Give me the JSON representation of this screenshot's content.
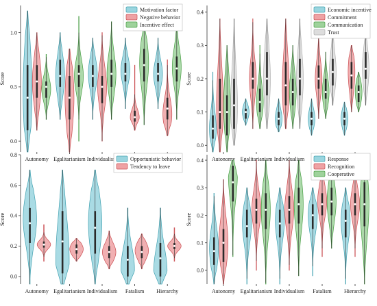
{
  "colors": {
    "teal": "#48b3c4",
    "red": "#e0555a",
    "green": "#4fae4a",
    "gray": "#c2c2c2"
  },
  "chart_data": [
    {
      "type": "violin",
      "panel": "top-left",
      "ylabel": "Score",
      "ylim": [
        -0.1,
        1.25
      ],
      "yticks": [
        0.0,
        0.5,
        1.0
      ],
      "ytick_labels": [
        "0.0",
        "0.5",
        "1.0"
      ],
      "categories": [
        "Autonomy",
        "Egalitarianism",
        "Individualism",
        "Fatalism",
        "Hierarchy"
      ],
      "legend_position": "top-right",
      "series": [
        {
          "name": "Motivation factor",
          "color": "teal",
          "stats": [
            {
              "min": -0.1,
              "q1": 0.1,
              "med": 0.4,
              "q3": 0.7,
              "max": 1.2,
              "mode": 0.45
            },
            {
              "min": 0.2,
              "q1": 0.5,
              "med": 0.6,
              "q3": 0.75,
              "max": 1.0,
              "mode": 0.6
            },
            {
              "min": 0.2,
              "q1": 0.5,
              "med": 0.6,
              "q3": 0.7,
              "max": 0.95,
              "mode": 0.62
            },
            {
              "min": 0.3,
              "q1": 0.55,
              "med": 0.62,
              "q3": 0.72,
              "max": 0.95,
              "mode": 0.65
            },
            {
              "min": 0.3,
              "q1": 0.55,
              "med": 0.62,
              "q3": 0.72,
              "max": 0.95,
              "mode": 0.62
            }
          ]
        },
        {
          "name": "Negative behavior",
          "color": "red",
          "stats": [
            {
              "min": 0.1,
              "q1": 0.4,
              "med": 0.55,
              "q3": 0.7,
              "max": 1.0,
              "mode": 0.55
            },
            {
              "min": -0.1,
              "q1": 0.2,
              "med": 0.4,
              "q3": 0.6,
              "max": 0.85,
              "mode": 0.4
            },
            {
              "min": 0.0,
              "q1": 0.35,
              "med": 0.5,
              "q3": 0.6,
              "max": 1.0,
              "mode": 0.5
            },
            {
              "min": 0.1,
              "q1": 0.18,
              "med": 0.22,
              "q3": 0.28,
              "max": 0.7,
              "mode": 0.22
            },
            {
              "min": 0.05,
              "q1": 0.2,
              "med": 0.3,
              "q3": 0.4,
              "max": 0.75,
              "mode": 0.25
            }
          ]
        },
        {
          "name": "Incentive effect",
          "color": "green",
          "stats": [
            {
              "min": 0.2,
              "q1": 0.4,
              "med": 0.5,
              "q3": 0.55,
              "max": 0.8,
              "mode": 0.48
            },
            {
              "min": 0.0,
              "q1": 0.5,
              "med": 0.62,
              "q3": 0.7,
              "max": 1.15,
              "mode": 0.6
            },
            {
              "min": 0.2,
              "q1": 0.5,
              "med": 0.62,
              "q3": 0.75,
              "max": 1.1,
              "mode": 0.62
            },
            {
              "min": 0.15,
              "q1": 0.55,
              "med": 0.7,
              "q3": 0.85,
              "max": 1.1,
              "mode": 0.72
            },
            {
              "min": 0.2,
              "q1": 0.55,
              "med": 0.67,
              "q3": 0.78,
              "max": 1.15,
              "mode": 0.68
            }
          ]
        }
      ]
    },
    {
      "type": "violin",
      "panel": "top-right",
      "ylabel": "Score",
      "ylim": [
        -0.02,
        0.42
      ],
      "yticks": [
        0.0,
        0.1,
        0.2,
        0.3,
        0.4
      ],
      "ytick_labels": [
        "0.0",
        "0.1",
        "0.2",
        "0.3",
        "0.4"
      ],
      "categories": [
        "Autonomy",
        "Egalitarianism",
        "Individualism",
        "Fatalism",
        "Hierarchy"
      ],
      "legend_position": "top-right",
      "series": [
        {
          "name": "Economic incentive",
          "color": "teal",
          "stats": [
            {
              "min": -0.02,
              "q1": 0.02,
              "med": 0.05,
              "q3": 0.09,
              "max": 0.22,
              "mode": 0.05
            },
            {
              "min": 0.06,
              "q1": 0.08,
              "med": 0.1,
              "q3": 0.11,
              "max": 0.14,
              "mode": 0.1
            },
            {
              "min": 0.04,
              "q1": 0.06,
              "med": 0.08,
              "q3": 0.1,
              "max": 0.14,
              "mode": 0.08
            },
            {
              "min": 0.03,
              "q1": 0.06,
              "med": 0.08,
              "q3": 0.1,
              "max": 0.14,
              "mode": 0.08
            },
            {
              "min": 0.03,
              "q1": 0.06,
              "med": 0.08,
              "q3": 0.1,
              "max": 0.13,
              "mode": 0.08
            }
          ]
        },
        {
          "name": "Commitment",
          "color": "red",
          "stats": [
            {
              "min": -0.02,
              "q1": 0.05,
              "med": 0.1,
              "q3": 0.2,
              "max": 0.38,
              "mode": 0.12
            },
            {
              "min": 0.05,
              "q1": 0.17,
              "med": 0.2,
              "q3": 0.25,
              "max": 0.38,
              "mode": 0.2
            },
            {
              "min": 0.05,
              "q1": 0.12,
              "med": 0.18,
              "q3": 0.25,
              "max": 0.38,
              "mode": 0.18
            },
            {
              "min": 0.08,
              "q1": 0.17,
              "med": 0.2,
              "q3": 0.24,
              "max": 0.35,
              "mode": 0.2
            },
            {
              "min": 0.1,
              "q1": 0.17,
              "med": 0.21,
              "q3": 0.25,
              "max": 0.3,
              "mode": 0.22
            }
          ]
        },
        {
          "name": "Communication",
          "color": "green",
          "stats": [
            {
              "min": -0.02,
              "q1": 0.03,
              "med": 0.1,
              "q3": 0.15,
              "max": 0.3,
              "mode": 0.12
            },
            {
              "min": 0.05,
              "q1": 0.1,
              "med": 0.13,
              "q3": 0.17,
              "max": 0.3,
              "mode": 0.13
            },
            {
              "min": 0.05,
              "q1": 0.12,
              "med": 0.16,
              "q3": 0.2,
              "max": 0.3,
              "mode": 0.16
            },
            {
              "min": 0.08,
              "q1": 0.14,
              "med": 0.16,
              "q3": 0.2,
              "max": 0.28,
              "mode": 0.16
            },
            {
              "min": 0.1,
              "q1": 0.13,
              "med": 0.16,
              "q3": 0.18,
              "max": 0.22,
              "mode": 0.16
            }
          ]
        },
        {
          "name": "Trust",
          "color": "gray",
          "stats": [
            {
              "min": 0.0,
              "q1": 0.05,
              "med": 0.12,
              "q3": 0.2,
              "max": 0.38,
              "mode": 0.12
            },
            {
              "min": 0.05,
              "q1": 0.15,
              "med": 0.2,
              "q3": 0.28,
              "max": 0.38,
              "mode": 0.2
            },
            {
              "min": 0.05,
              "q1": 0.15,
              "med": 0.2,
              "q3": 0.26,
              "max": 0.38,
              "mode": 0.2
            },
            {
              "min": 0.12,
              "q1": 0.18,
              "med": 0.22,
              "q3": 0.26,
              "max": 0.38,
              "mode": 0.22
            },
            {
              "min": 0.12,
              "q1": 0.2,
              "med": 0.23,
              "q3": 0.28,
              "max": 0.35,
              "mode": 0.23
            }
          ]
        }
      ]
    },
    {
      "type": "violin",
      "panel": "bottom-left",
      "ylabel": "Score",
      "ylim": [
        -0.05,
        0.8
      ],
      "yticks": [
        0.0,
        0.2,
        0.4,
        0.6,
        0.8
      ],
      "ytick_labels": [
        "0.0",
        "0.2",
        "0.4",
        "0.6",
        "0.8"
      ],
      "categories": [
        "Autonomy",
        "Egalitarianism",
        "Individualism",
        "Fatalism",
        "Hierarchy"
      ],
      "legend_position": "top-right",
      "series": [
        {
          "name": "Opportunistic behavior",
          "color": "teal",
          "stats": [
            {
              "min": -0.05,
              "q1": 0.22,
              "med": 0.35,
              "q3": 0.45,
              "max": 0.7,
              "mode": 0.38
            },
            {
              "min": -0.05,
              "q1": 0.02,
              "med": 0.23,
              "q3": 0.43,
              "max": 0.7,
              "mode": 0.1
            },
            {
              "min": -0.05,
              "q1": 0.15,
              "med": 0.32,
              "q3": 0.43,
              "max": 0.7,
              "mode": 0.35
            },
            {
              "min": -0.05,
              "q1": 0.0,
              "med": 0.11,
              "q3": 0.2,
              "max": 0.45,
              "mode": 0.05
            },
            {
              "min": -0.05,
              "q1": 0.0,
              "med": 0.12,
              "q3": 0.22,
              "max": 0.45,
              "mode": 0.03
            }
          ]
        },
        {
          "name": "Tendency to leave",
          "color": "red",
          "stats": [
            {
              "min": 0.1,
              "q1": 0.19,
              "med": 0.21,
              "q3": 0.23,
              "max": 0.34,
              "mode": 0.21
            },
            {
              "min": 0.1,
              "q1": 0.15,
              "med": 0.18,
              "q3": 0.21,
              "max": 0.25,
              "mode": 0.18
            },
            {
              "min": 0.05,
              "q1": 0.12,
              "med": 0.16,
              "q3": 0.2,
              "max": 0.3,
              "mode": 0.16
            },
            {
              "min": 0.05,
              "q1": 0.12,
              "med": 0.16,
              "q3": 0.2,
              "max": 0.28,
              "mode": 0.17
            },
            {
              "min": 0.1,
              "q1": 0.18,
              "med": 0.2,
              "q3": 0.22,
              "max": 0.32,
              "mode": 0.2
            }
          ]
        }
      ]
    },
    {
      "type": "violin",
      "panel": "bottom-right",
      "ylabel": "Score",
      "ylim": [
        -0.05,
        0.42
      ],
      "yticks": [
        0.0,
        0.1,
        0.2,
        0.3,
        0.4
      ],
      "ytick_labels": [
        "0.0",
        "0.1",
        "0.2",
        "0.3",
        "0.4"
      ],
      "categories": [
        "Autonomy",
        "Egalitarianism",
        "Individualism",
        "Fatalism",
        "Hierarchy"
      ],
      "legend_position": "top-right",
      "series": [
        {
          "name": "Response",
          "color": "teal",
          "stats": [
            {
              "min": -0.05,
              "q1": 0.02,
              "med": 0.07,
              "q3": 0.12,
              "max": 0.28,
              "mode": 0.08
            },
            {
              "min": -0.05,
              "q1": 0.12,
              "med": 0.16,
              "q3": 0.22,
              "max": 0.3,
              "mode": 0.17
            },
            {
              "min": -0.05,
              "q1": 0.12,
              "med": 0.17,
              "q3": 0.22,
              "max": 0.3,
              "mode": 0.18
            },
            {
              "min": -0.02,
              "q1": 0.15,
              "med": 0.2,
              "q3": 0.24,
              "max": 0.3,
              "mode": 0.2
            },
            {
              "min": -0.05,
              "q1": 0.12,
              "med": 0.18,
              "q3": 0.22,
              "max": 0.3,
              "mode": 0.18
            }
          ]
        },
        {
          "name": "Recognition",
          "color": "red",
          "stats": [
            {
              "min": -0.05,
              "q1": 0.03,
              "med": 0.1,
              "q3": 0.15,
              "max": 0.33,
              "mode": 0.1
            },
            {
              "min": 0.0,
              "q1": 0.17,
              "med": 0.22,
              "q3": 0.26,
              "max": 0.4,
              "mode": 0.22
            },
            {
              "min": 0.0,
              "q1": 0.17,
              "med": 0.22,
              "q3": 0.27,
              "max": 0.4,
              "mode": 0.22
            },
            {
              "min": 0.05,
              "q1": 0.2,
              "med": 0.24,
              "q3": 0.28,
              "max": 0.4,
              "mode": 0.25
            },
            {
              "min": 0.05,
              "q1": 0.2,
              "med": 0.24,
              "q3": 0.28,
              "max": 0.4,
              "mode": 0.24
            }
          ]
        },
        {
          "name": "Cooperative",
          "color": "green",
          "stats": [
            {
              "min": 0.05,
              "q1": 0.25,
              "med": 0.32,
              "q3": 0.38,
              "max": 0.4,
              "mode": 0.35
            },
            {
              "min": -0.05,
              "q1": 0.15,
              "med": 0.22,
              "q3": 0.28,
              "max": 0.4,
              "mode": 0.22
            },
            {
              "min": -0.02,
              "q1": 0.17,
              "med": 0.24,
              "q3": 0.3,
              "max": 0.4,
              "mode": 0.24
            },
            {
              "min": 0.08,
              "q1": 0.2,
              "med": 0.25,
              "q3": 0.3,
              "max": 0.4,
              "mode": 0.25
            },
            {
              "min": -0.05,
              "q1": 0.16,
              "med": 0.24,
              "q3": 0.32,
              "max": 0.4,
              "mode": 0.24
            }
          ]
        }
      ]
    }
  ]
}
